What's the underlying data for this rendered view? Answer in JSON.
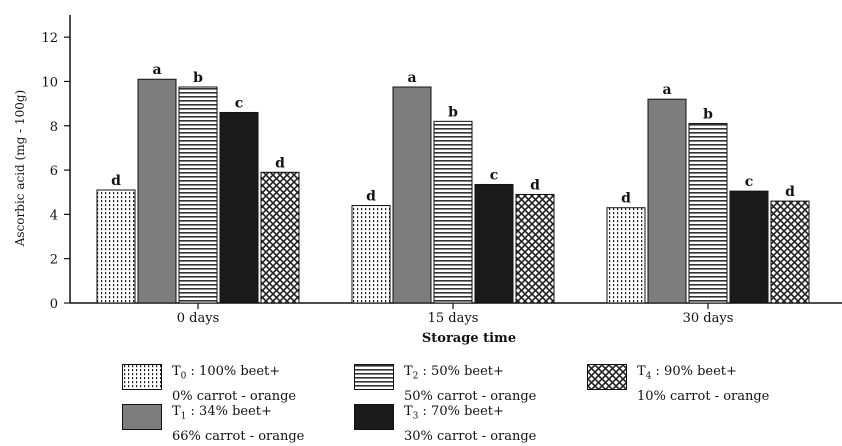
{
  "chart_data": {
    "type": "bar",
    "title": "",
    "xlabel": "Storage time",
    "ylabel": "Ascorbic acid (mg - 100g)",
    "ylim": [
      0,
      13
    ],
    "yticks": [
      0,
      2,
      4,
      6,
      8,
      10,
      12
    ],
    "categories": [
      "0 days",
      "15 days",
      "30 days"
    ],
    "grid": false,
    "legend_position": "bottom",
    "series": [
      {
        "name": "T0 : 100% beet+ 0% carrot - orange",
        "pattern": "dots",
        "values": [
          5.1,
          4.4,
          4.3
        ],
        "letters": [
          "d",
          "d",
          "d"
        ]
      },
      {
        "name": "T1 : 34% beet+ 66% carrot - orange",
        "pattern": "gray",
        "color": "#7d7d7d",
        "values": [
          10.1,
          9.75,
          9.2
        ],
        "letters": [
          "a",
          "a",
          "a"
        ]
      },
      {
        "name": "T2 : 50% beet+ 50% carrot - orange",
        "pattern": "hstripes",
        "values": [
          9.75,
          8.2,
          8.1
        ],
        "letters": [
          "b",
          "b",
          "b"
        ]
      },
      {
        "name": "T3 : 70% beet+ 30% carrot - orange",
        "pattern": "black",
        "color": "#1a1a1a",
        "values": [
          8.6,
          5.35,
          5.05
        ],
        "letters": [
          "c",
          "c",
          "c"
        ]
      },
      {
        "name": "T4 : 90% beet+ 10% carrot - orange",
        "pattern": "crosshatch",
        "values": [
          5.9,
          4.9,
          4.6
        ],
        "letters": [
          "d",
          "d",
          "d"
        ]
      }
    ]
  },
  "legend": [
    {
      "sym": "T",
      "sub": "0",
      "line1": " : 100% beet+",
      "line2": "0% carrot - orange",
      "pattern": "dots"
    },
    {
      "sym": "T",
      "sub": "1",
      "line1": " : 34% beet+",
      "line2": "66% carrot - orange",
      "pattern": "gray"
    },
    {
      "sym": "T",
      "sub": "2",
      "line1": " : 50% beet+",
      "line2": "50% carrot - orange",
      "pattern": "hstripes"
    },
    {
      "sym": "T",
      "sub": "3",
      "line1": " : 70% beet+",
      "line2": "30% carrot - orange",
      "pattern": "black"
    },
    {
      "sym": "T",
      "sub": "4",
      "line1": " : 90% beet+",
      "line2": "10% carrot - orange",
      "pattern": "crosshatch"
    }
  ]
}
